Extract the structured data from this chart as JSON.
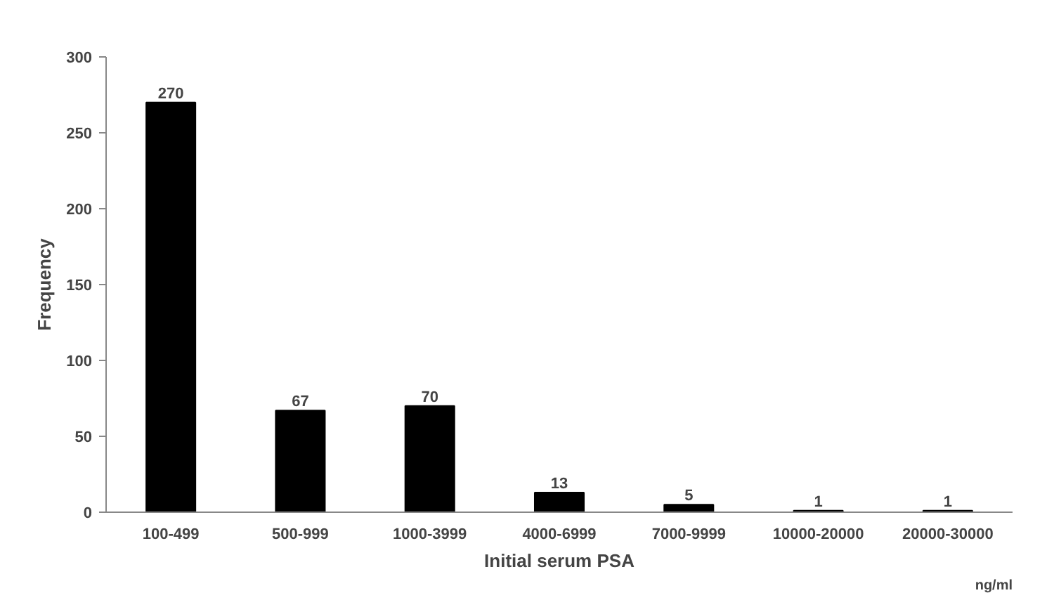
{
  "chart_data": {
    "type": "bar",
    "xlabel": "Initial serum PSA",
    "ylabel": "Frequency",
    "categories": [
      "100-499",
      "500-999",
      "1000-3999",
      "4000-6999",
      "7000-9999",
      "10000-20000",
      "20000-30000"
    ],
    "values": [
      270,
      67,
      70,
      13,
      5,
      1,
      1
    ],
    "color": "#000000",
    "ylim": [
      0,
      300
    ],
    "yticks": [
      0,
      50,
      100,
      150,
      200,
      250,
      300
    ],
    "grid": false,
    "data_labels": true,
    "annotations": [
      "ng/ml"
    ]
  }
}
